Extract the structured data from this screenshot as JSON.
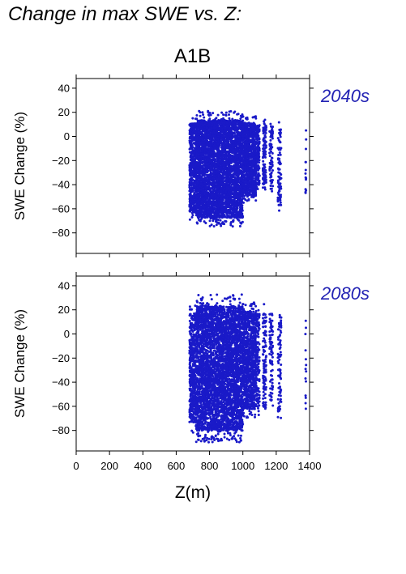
{
  "figure": {
    "title": "Change in max SWE vs. Z:",
    "scenario": "A1B"
  },
  "colors": {
    "points": "#1a1ac8",
    "period_label": "#2323b4",
    "axis": "#000000"
  },
  "chart_data": [
    {
      "type": "scatter",
      "panel_label": "2040s",
      "ylabel": "SWE Change (%)",
      "xlabel": "",
      "xlim": [
        0,
        1400
      ],
      "ylim": [
        -97,
        48
      ],
      "x_ticks": [
        0,
        200,
        400,
        600,
        800,
        1000,
        1200,
        1400
      ],
      "y_ticks": [
        -80,
        -60,
        -40,
        -20,
        0,
        20,
        40
      ],
      "x_tick_labels_shown": false,
      "clusters": [
        {
          "x": [
            680,
            720
          ],
          "y": [
            -70,
            18
          ],
          "density": 0.8
        },
        {
          "x": [
            720,
            1000
          ],
          "y": [
            -75,
            21
          ],
          "density": 1.0
        },
        {
          "x": [
            1000,
            1080
          ],
          "y": [
            -55,
            17
          ],
          "density": 0.8
        },
        {
          "x": [
            1080,
            1100
          ],
          "y": [
            -45,
            14
          ],
          "density": 0.5
        },
        {
          "x": [
            1120,
            1140
          ],
          "y": [
            -48,
            15
          ],
          "density": 0.4
        },
        {
          "x": [
            1160,
            1180
          ],
          "y": [
            -50,
            14
          ],
          "density": 0.3
        },
        {
          "x": [
            1210,
            1230
          ],
          "y": [
            -65,
            13
          ],
          "density": 0.3
        },
        {
          "x": [
            1375,
            1380
          ],
          "y": [
            -52,
            13
          ],
          "density": 0.2
        }
      ]
    },
    {
      "type": "scatter",
      "panel_label": "2080s",
      "ylabel": "SWE Change (%)",
      "xlabel": "Z(m)",
      "xlim": [
        0,
        1400
      ],
      "ylim": [
        -97,
        48
      ],
      "x_ticks": [
        0,
        200,
        400,
        600,
        800,
        1000,
        1200,
        1400
      ],
      "y_ticks": [
        -80,
        -60,
        -40,
        -20,
        0,
        20,
        40
      ],
      "x_tick_labels_shown": true,
      "clusters": [
        {
          "x": [
            680,
            720
          ],
          "y": [
            -82,
            25
          ],
          "density": 0.8
        },
        {
          "x": [
            720,
            1000
          ],
          "y": [
            -90,
            33
          ],
          "density": 1.0
        },
        {
          "x": [
            1000,
            1080
          ],
          "y": [
            -70,
            27
          ],
          "density": 0.8
        },
        {
          "x": [
            1080,
            1100
          ],
          "y": [
            -68,
            24
          ],
          "density": 0.5
        },
        {
          "x": [
            1120,
            1140
          ],
          "y": [
            -70,
            25
          ],
          "density": 0.4
        },
        {
          "x": [
            1160,
            1180
          ],
          "y": [
            -62,
            24
          ],
          "density": 0.3
        },
        {
          "x": [
            1210,
            1230
          ],
          "y": [
            -72,
            22
          ],
          "density": 0.3
        },
        {
          "x": [
            1375,
            1380
          ],
          "y": [
            -65,
            23
          ],
          "density": 0.2
        }
      ]
    }
  ]
}
